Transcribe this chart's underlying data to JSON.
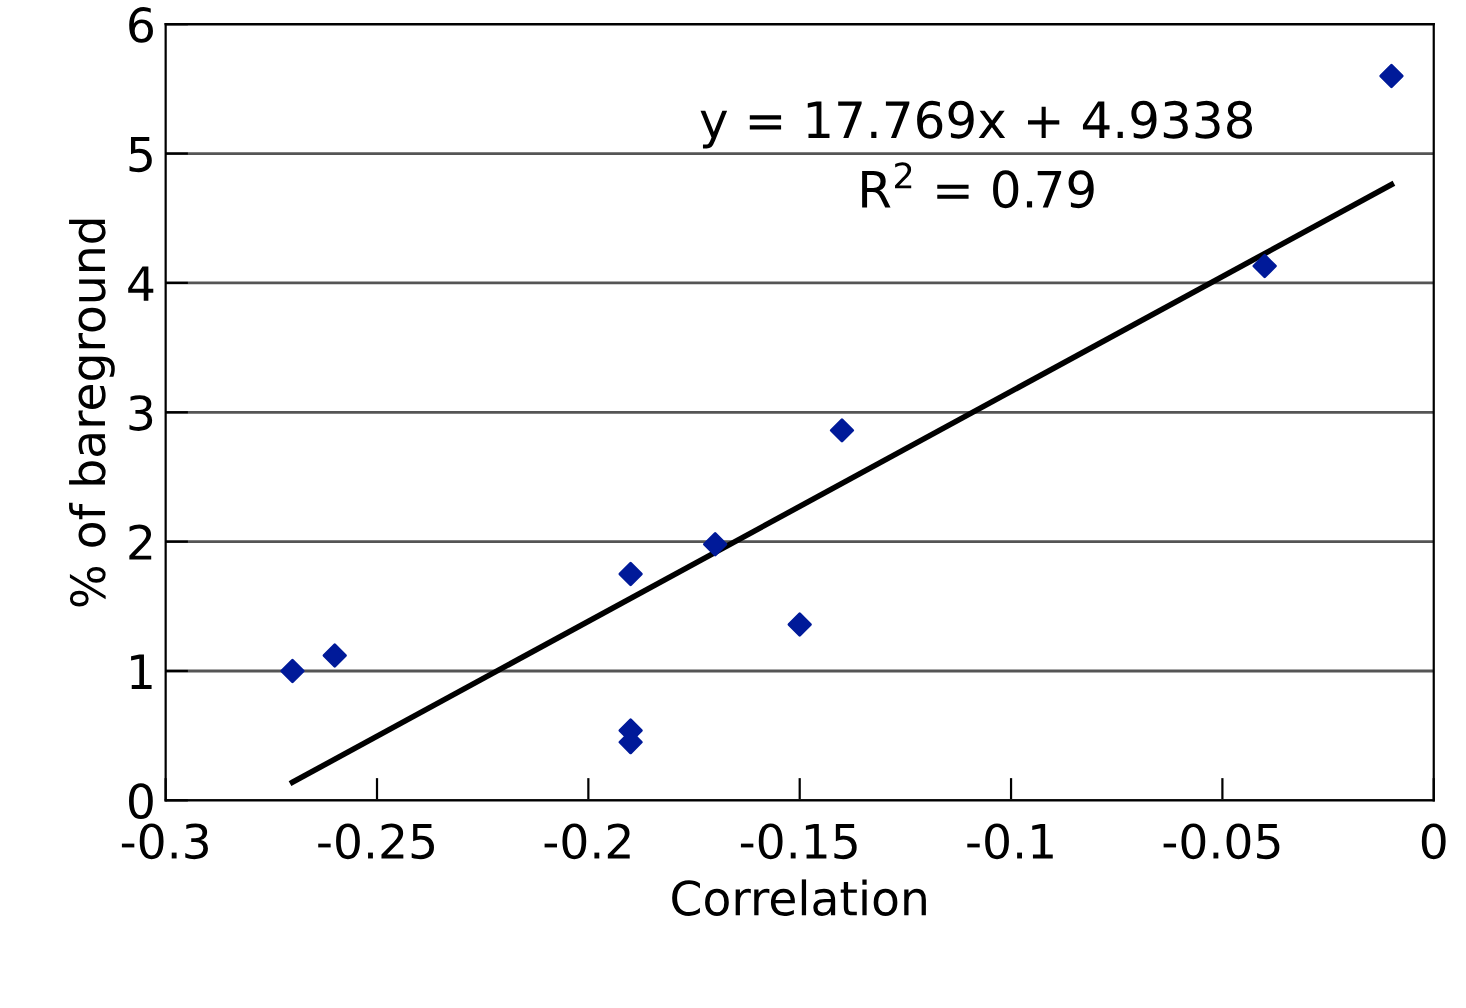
{
  "chart_data": {
    "type": "scatter",
    "xlabel": "Correlation",
    "ylabel": "% of bareground",
    "xlim": [
      -0.3,
      0
    ],
    "xticks": [
      -0.3,
      -0.25,
      -0.2,
      -0.15,
      -0.1,
      -0.05,
      0
    ],
    "ylim": [
      0,
      6
    ],
    "yticks": [
      0,
      1,
      2,
      3,
      4,
      5,
      6
    ],
    "grid": "y",
    "marker": "diamond",
    "series": [
      {
        "color": "#001a99",
        "x": [
          -0.27,
          -0.26,
          -0.19,
          -0.17,
          -0.15,
          -0.19,
          -0.19,
          -0.14,
          -0.04,
          -0.01
        ],
        "values": [
          1.0,
          1.12,
          1.75,
          1.98,
          1.36,
          0.54,
          0.45,
          2.86,
          4.13,
          5.6
        ]
      },
      {
        "type": "line",
        "color": "#000000",
        "x": [
          -0.27,
          -0.01
        ],
        "values": [
          0.14,
          4.76
        ],
        "marker": "none"
      }
    ],
    "annotations": [
      "y = 17.769x + 4.9338",
      "R$^{2}$ = 0.79"
    ]
  }
}
